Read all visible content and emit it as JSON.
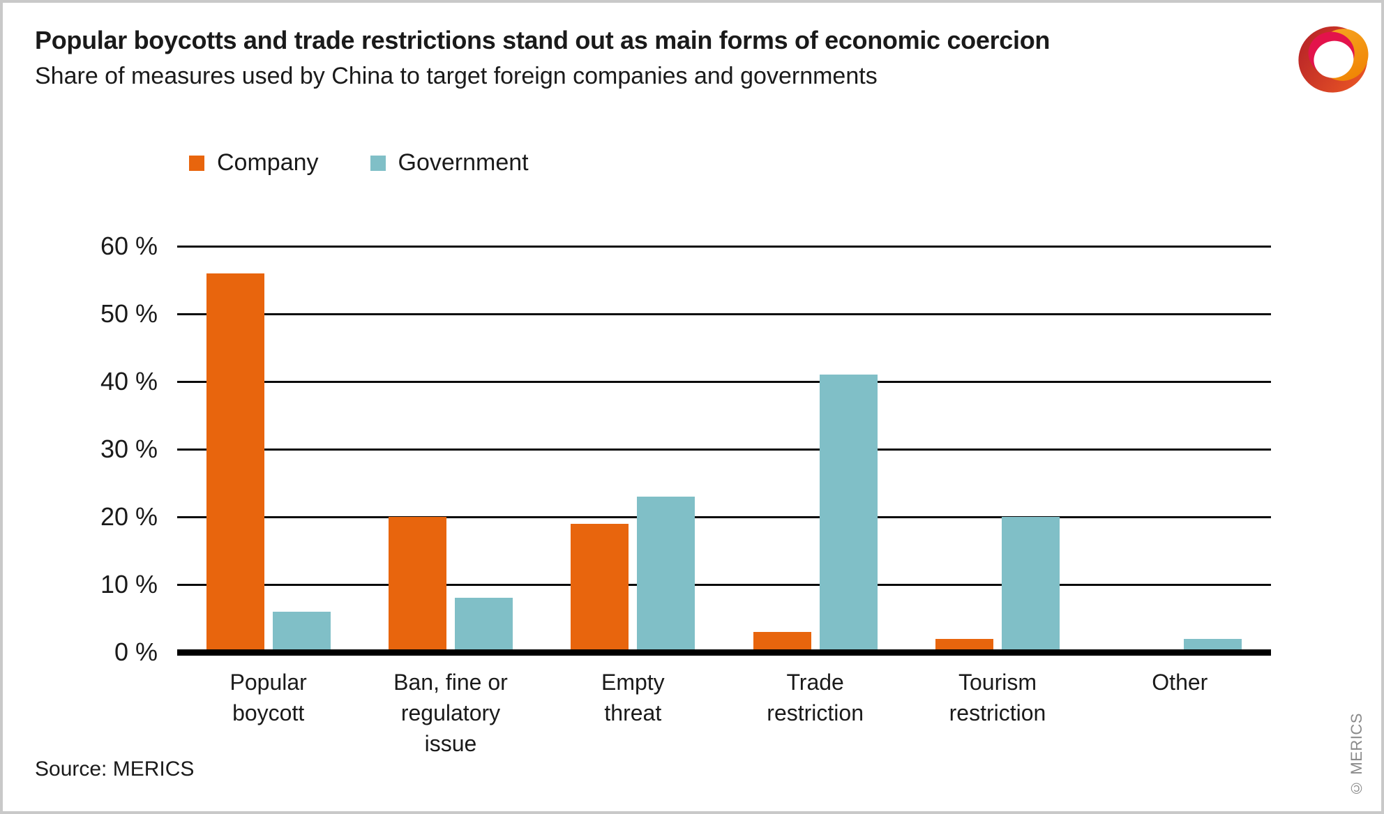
{
  "header": {
    "title": "Popular boycotts and trade restrictions stand out as main forms of economic coercion",
    "subtitle": "Share of measures used by China to target foreign companies and governments"
  },
  "chart_data": {
    "type": "bar",
    "title": "Popular boycotts and trade restrictions stand out as main forms of economic coercion",
    "subtitle": "Share of measures used by China to target foreign companies and governments",
    "categories": [
      "Popular boycott",
      "Ban, fine or regulatory issue",
      "Empty threat",
      "Trade restriction",
      "Tourism restriction",
      "Other"
    ],
    "category_labels": [
      "Popular\nboycott",
      "Ban, fine or\nregulatory\nissue",
      "Empty\nthreat",
      "Trade\nrestriction",
      "Tourism\nrestriction",
      "Other"
    ],
    "series": [
      {
        "name": "Company",
        "color": "#E8650D",
        "values": [
          56,
          20,
          19,
          3,
          2,
          0
        ]
      },
      {
        "name": "Government",
        "color": "#80BFC7",
        "values": [
          6,
          8,
          23,
          41,
          20,
          2
        ]
      }
    ],
    "unit": "%",
    "ylim": [
      0,
      60
    ],
    "ytick_step": 10,
    "ytick_labels": [
      "60 %",
      "50 %",
      "40 %",
      "30 %",
      "20 %",
      "10 %",
      "0 %"
    ],
    "grid": true,
    "legend_position": "top-left",
    "xlabel": "",
    "ylabel": ""
  },
  "footer": {
    "source": "Source: MERICS",
    "copyright": "© MERICS"
  },
  "logo": {
    "name": "merics-logo"
  },
  "colors": {
    "company_orange": "#E8650D",
    "government_teal": "#80BFC7",
    "text": "#1A1A1A",
    "gridline": "#0B0B0B",
    "axis_baseline": "#000000",
    "frame": "#C9C9C9",
    "copyright_gray": "#8A8A8A"
  }
}
